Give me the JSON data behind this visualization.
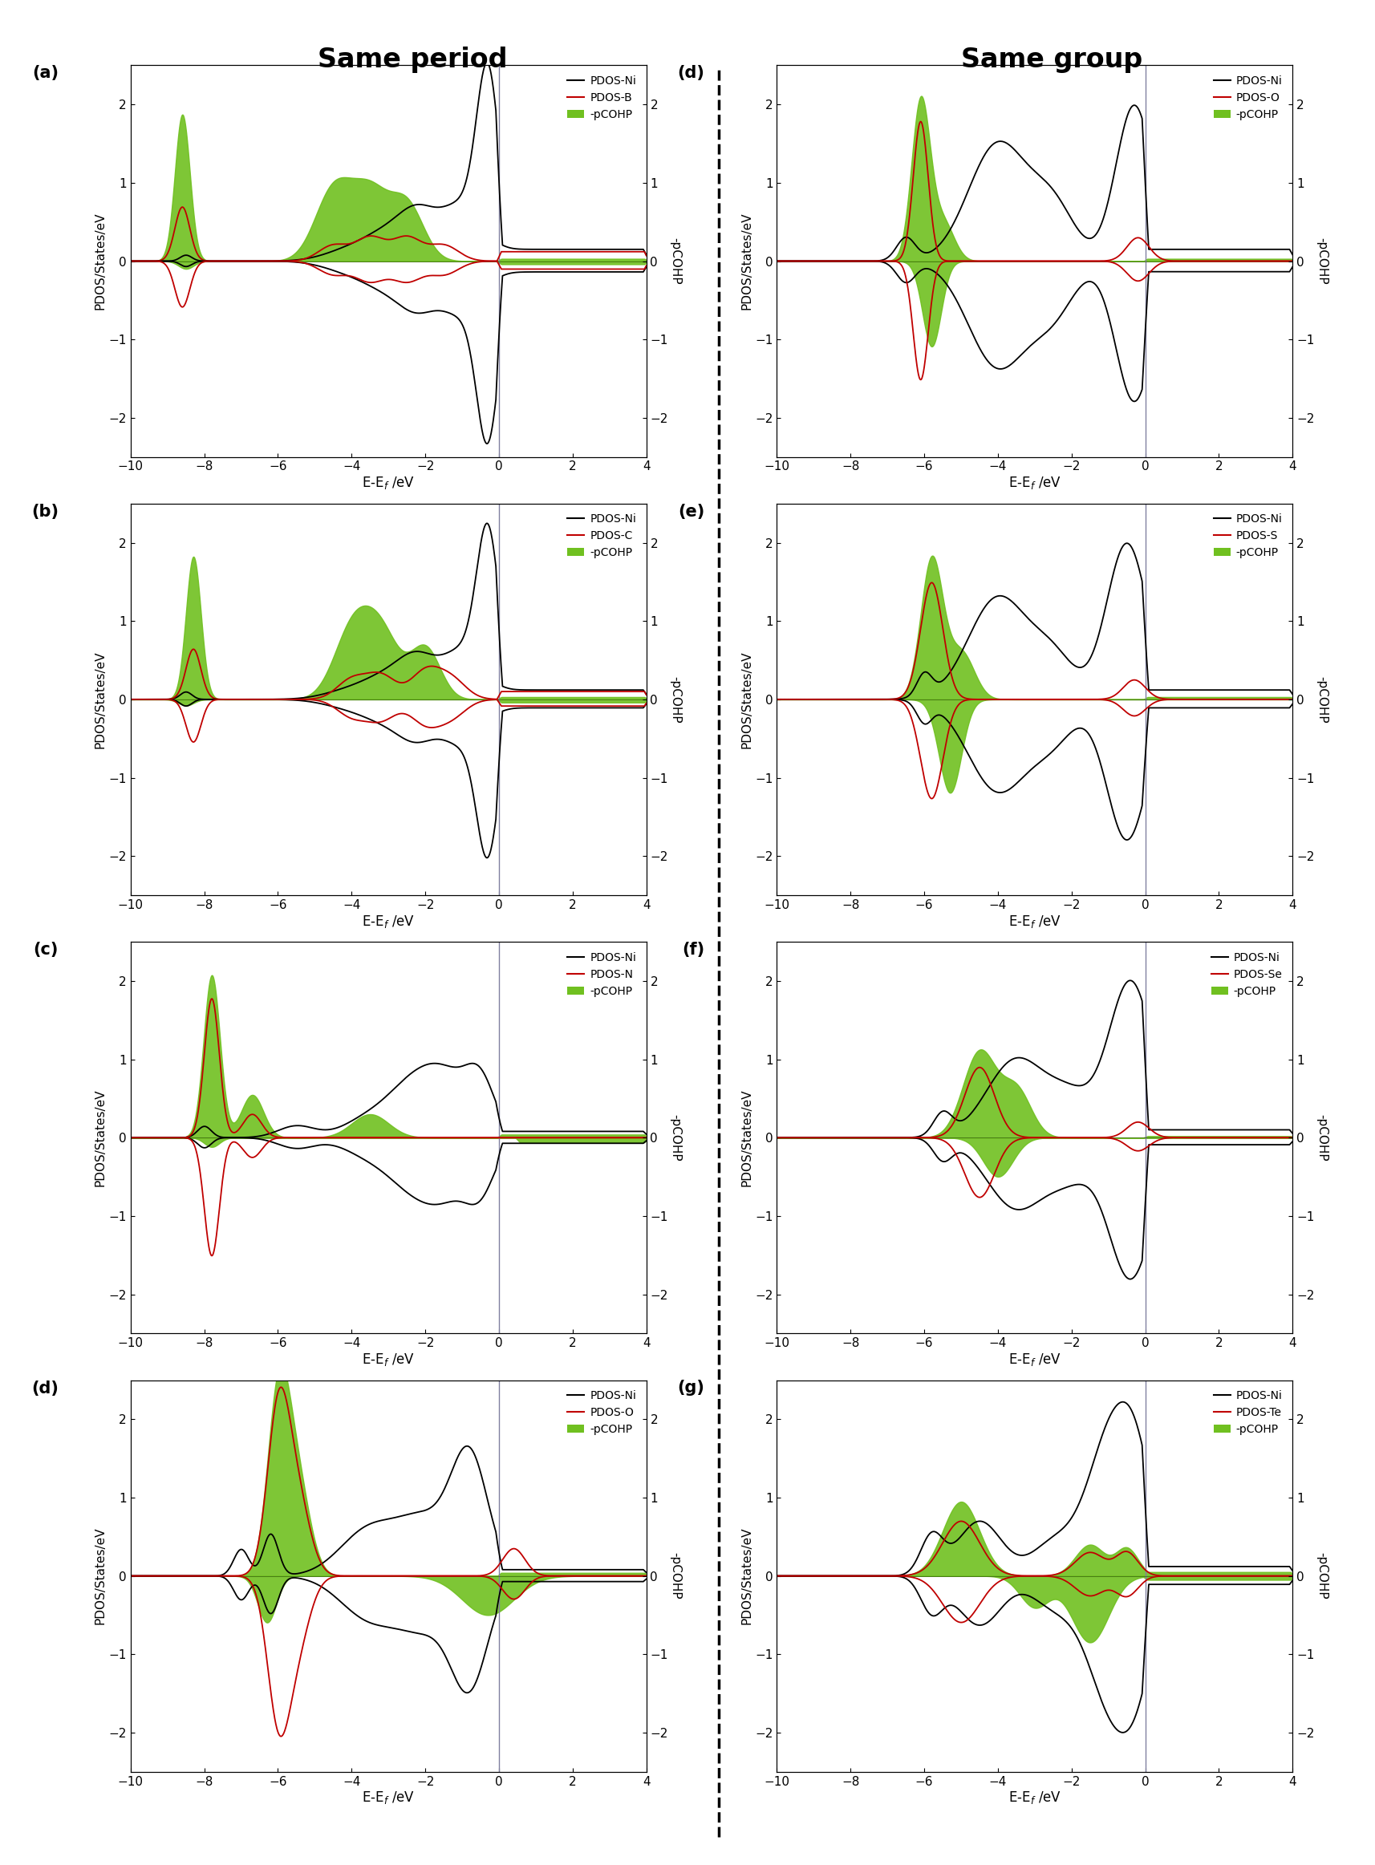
{
  "xlim": [
    -10,
    4
  ],
  "ylim": [
    -2.5,
    2.5
  ],
  "xticks": [
    -10,
    -8,
    -6,
    -4,
    -2,
    0,
    2,
    4
  ],
  "yticks": [
    -2,
    -1,
    0,
    1,
    2
  ],
  "xlabel": "E-E_{f} /eV",
  "ylabel_left": "PDOS/States/eV",
  "ylabel_right": "-pCOHP",
  "vline_x": 0,
  "col_titles": [
    "Same period",
    "Same group"
  ],
  "panel_labels_left": [
    "(a)",
    "(b)",
    "(c)",
    "(d)"
  ],
  "panel_labels_right": [
    "(d)",
    "(e)",
    "(f)",
    "(g)"
  ],
  "labels_left_nm": [
    "PDOS-B",
    "PDOS-C",
    "PDOS-N",
    "PDOS-O"
  ],
  "labels_right_nm": [
    "PDOS-O",
    "PDOS-S",
    "PDOS-Se",
    "PDOS-Te"
  ],
  "legend_ni": "PDOS-Ni",
  "legend_pcohp": "-pCOHP",
  "colors": {
    "ni": "#000000",
    "nonmetal": "#c00000",
    "pcohp": "#70c020",
    "vline": "#8080a0"
  }
}
